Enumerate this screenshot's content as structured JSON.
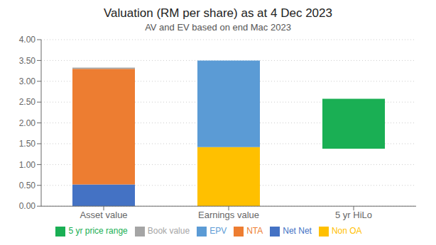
{
  "chart_data": {
    "type": "bar",
    "stacked": true,
    "title": "Valuation  (RM per share) as at 4 Dec 2023",
    "subtitle": "AV and EV based on end Mac 2023",
    "categories": [
      "Asset value",
      "Earnings value",
      "5 yr HiLo"
    ],
    "series": [
      {
        "name": "Net Net",
        "color": "#4472C4",
        "values": [
          0.52,
          null,
          null
        ]
      },
      {
        "name": "NTA",
        "color": "#ED7D31",
        "values": [
          2.78,
          null,
          null
        ]
      },
      {
        "name": "Book value",
        "color": "#A5A5A5",
        "values": [
          0.03,
          null,
          null
        ]
      },
      {
        "name": "Non OA",
        "color": "#FFC000",
        "values": [
          null,
          1.42,
          null
        ]
      },
      {
        "name": "EPV",
        "color": "#5B9BD5",
        "values": [
          null,
          2.08,
          null
        ]
      },
      {
        "name": "5 yr price range",
        "color": "#1AAF54",
        "values": [
          null,
          null,
          1.2
        ],
        "bottoms": [
          null,
          null,
          1.38
        ]
      }
    ],
    "ylim": [
      0,
      4.0
    ],
    "yticks": [
      {
        "value": 0.0,
        "label": "0.00"
      },
      {
        "value": 0.5,
        "label": "0.50"
      },
      {
        "value": 1.0,
        "label": "1.00"
      },
      {
        "value": 1.5,
        "label": "1.50"
      },
      {
        "value": 2.0,
        "label": "2.00"
      },
      {
        "value": 2.5,
        "label": "2.50"
      },
      {
        "value": 3.0,
        "label": "3.00"
      },
      {
        "value": 3.5,
        "label": "3.50"
      },
      {
        "value": 4.0,
        "label": "4.00"
      }
    ],
    "grid": true,
    "legend": "bottom"
  }
}
